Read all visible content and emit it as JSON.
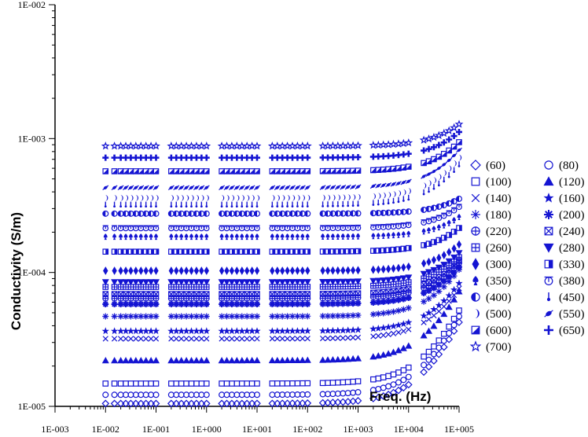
{
  "chart_data": {
    "type": "scatter",
    "title": "",
    "xlabel": "Freq. (Hz)",
    "ylabel": "Conductivity (S/m)",
    "x_scale": "log",
    "y_scale": "log",
    "xlim": [
      0.001,
      100000
    ],
    "ylim": [
      1e-05,
      0.01
    ],
    "x_tick_labels": [
      "1E-003",
      "1E-002",
      "1E-001",
      "1E+000",
      "1E+001",
      "1E+002",
      "1E+003",
      "1E+004",
      "1E+005"
    ],
    "y_tick_labels": [
      "1E-005",
      "1E-004",
      "1E-003",
      "1E-002"
    ],
    "grid": false,
    "legend_position": "right",
    "marker_color": "#1414d2",
    "x_range_of_data": [
      0.01,
      100000
    ],
    "series": [
      {
        "name": "(60)",
        "marker": "diamond-open",
        "dc": 1.05e-05,
        "high_freq_value": 4.25e-05
      },
      {
        "name": "(80)",
        "marker": "circle-open",
        "dc": 1.22e-05,
        "high_freq_value": 4.7e-05
      },
      {
        "name": "(100)",
        "marker": "square-open",
        "dc": 1.48e-05,
        "high_freq_value": 5.2e-05
      },
      {
        "name": "(120)",
        "marker": "triangle-up-filled",
        "dc": 2.2e-05,
        "high_freq_value": 7.2e-05
      },
      {
        "name": "(140)",
        "marker": "x-cross",
        "dc": 3.2e-05,
        "high_freq_value": 7.6e-05
      },
      {
        "name": "(160)",
        "marker": "star-filled",
        "dc": 3.65e-05,
        "high_freq_value": 8.3e-05
      },
      {
        "name": "(180)",
        "marker": "asterisk",
        "dc": 4.7e-05,
        "high_freq_value": 0.000105
      },
      {
        "name": "(200)",
        "marker": "asterisk-bold",
        "dc": 5.8e-05,
        "high_freq_value": 0.00011
      },
      {
        "name": "(220)",
        "marker": "circle-plus",
        "dc": 6.4e-05,
        "high_freq_value": 0.000118
      },
      {
        "name": "(240)",
        "marker": "square-x",
        "dc": 6.9e-05,
        "high_freq_value": 0.000122
      },
      {
        "name": "(260)",
        "marker": "square-plus",
        "dc": 7.8e-05,
        "high_freq_value": 0.00013
      },
      {
        "name": "(280)",
        "marker": "triangle-down-filled",
        "dc": 8.5e-05,
        "high_freq_value": 0.00014
      },
      {
        "name": "(300)",
        "marker": "diamond-filled",
        "dc": 0.000103,
        "high_freq_value": 0.000162
      },
      {
        "name": "(330)",
        "marker": "square-half",
        "dc": 0.000143,
        "high_freq_value": 0.000215
      },
      {
        "name": "(350)",
        "marker": "spade",
        "dc": 0.000185,
        "high_freq_value": 0.00026
      },
      {
        "name": "(380)",
        "marker": "circle-bar",
        "dc": 0.000215,
        "high_freq_value": 0.00031
      },
      {
        "name": "(400)",
        "marker": "circle-half",
        "dc": 0.000275,
        "high_freq_value": 0.000355
      },
      {
        "name": "(450)",
        "marker": "pin",
        "dc": 0.00032,
        "high_freq_value": 0.00064
      },
      {
        "name": "(500)",
        "marker": "crescent",
        "dc": 0.00036,
        "high_freq_value": 0.00072
      },
      {
        "name": "(550)",
        "marker": "slash-ellipse",
        "dc": 0.00043,
        "high_freq_value": 0.00082
      },
      {
        "name": "(600)",
        "marker": "square-diagonal",
        "dc": 0.00057,
        "high_freq_value": 0.00094
      },
      {
        "name": "(650)",
        "marker": "plus-bold",
        "dc": 0.00072,
        "high_freq_value": 0.00112
      },
      {
        "name": "(700)",
        "marker": "star-open",
        "dc": 0.00088,
        "high_freq_value": 0.00128
      }
    ]
  }
}
